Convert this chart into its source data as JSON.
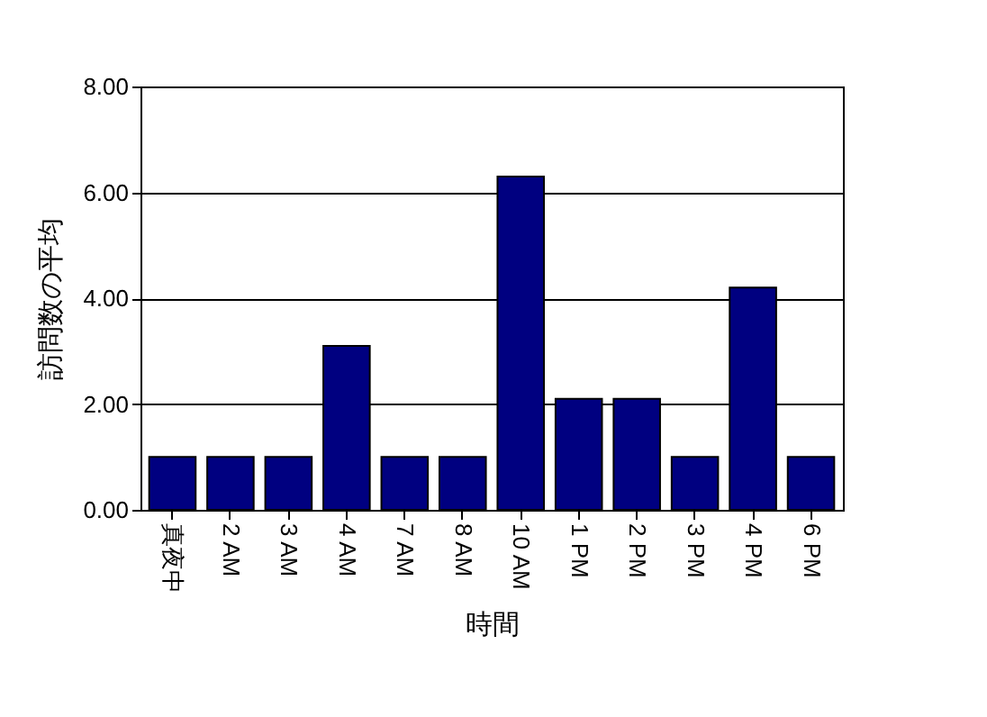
{
  "chart_data": {
    "type": "bar",
    "xlabel": "時間",
    "ylabel": "訪問数の平均",
    "categories": [
      "真夜中",
      "2 AM",
      "3 AM",
      "4 AM",
      "7 AM",
      "8 AM",
      "10 AM",
      "1 PM",
      "2 PM",
      "3 PM",
      "4 PM",
      "6 PM"
    ],
    "values": [
      1,
      1,
      1,
      3.1,
      1,
      1,
      6.3,
      2.1,
      2.1,
      1,
      4.2,
      1
    ],
    "color": "#000080",
    "ylim": [
      0,
      8
    ],
    "yticks": [
      {
        "value": 0,
        "label": "0.00"
      },
      {
        "value": 2,
        "label": "2.00"
      },
      {
        "value": 4,
        "label": "4.00"
      },
      {
        "value": 6,
        "label": "6.00"
      },
      {
        "value": 8,
        "label": "8.00"
      }
    ],
    "grid": "y"
  }
}
